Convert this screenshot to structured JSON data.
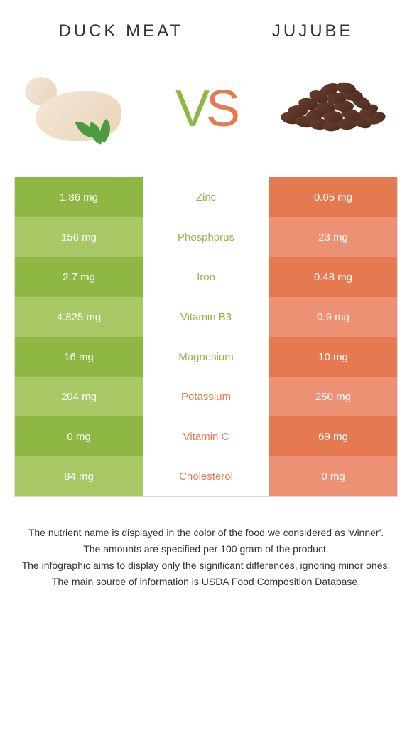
{
  "header": {
    "left_title": "DUCK MEAT",
    "right_title": "JUJUBE"
  },
  "vs": {
    "v": "V",
    "s": "S"
  },
  "colors": {
    "left_primary": "#8fb744",
    "left_secondary": "#a7c865",
    "right_primary": "#e57a51",
    "right_secondary": "#ec9173",
    "text": "#333333",
    "white": "#ffffff"
  },
  "table": {
    "rows": [
      {
        "left": "1.86 mg",
        "label": "Zinc",
        "right": "0.05 mg",
        "winner": "left"
      },
      {
        "left": "156 mg",
        "label": "Phosphorus",
        "right": "23 mg",
        "winner": "left"
      },
      {
        "left": "2.7 mg",
        "label": "Iron",
        "right": "0.48 mg",
        "winner": "left"
      },
      {
        "left": "4.825 mg",
        "label": "Vitamin B3",
        "right": "0.9 mg",
        "winner": "left"
      },
      {
        "left": "16 mg",
        "label": "Magnesium",
        "right": "10 mg",
        "winner": "left"
      },
      {
        "left": "204 mg",
        "label": "Potassium",
        "right": "250 mg",
        "winner": "right"
      },
      {
        "left": "0 mg",
        "label": "Vitamin C",
        "right": "69 mg",
        "winner": "right"
      },
      {
        "left": "84 mg",
        "label": "Cholesterol",
        "right": "0 mg",
        "winner": "right"
      }
    ]
  },
  "footer": {
    "line1": "The nutrient name is displayed in the color of the food we considered as 'winner'.",
    "line2": "The amounts are specified per 100 gram of the product.",
    "line3": "The infographic aims to display only the significant differences, ignoring minor ones.",
    "line4": "The main source of information is USDA Food Composition Database."
  }
}
